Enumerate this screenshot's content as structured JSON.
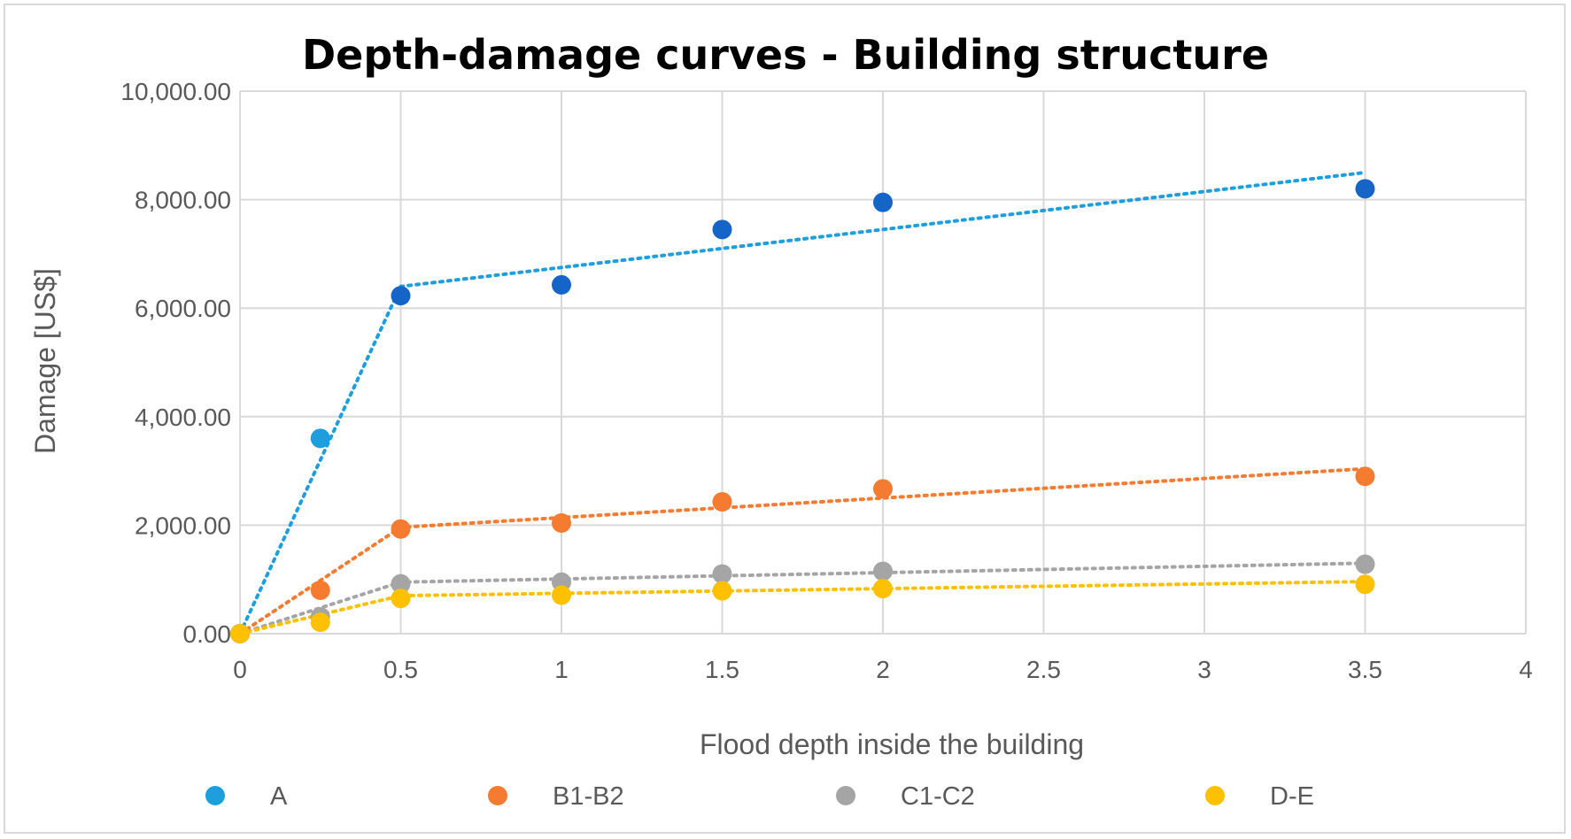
{
  "chart_data": {
    "type": "scatter",
    "title": "Depth-damage curves - Building structure",
    "xlabel": "Flood depth inside the building",
    "ylabel": "Damage [US$]",
    "xlim": [
      0,
      4
    ],
    "ylim": [
      0,
      10000
    ],
    "x_ticks": [
      0,
      0.5,
      1,
      1.5,
      2,
      2.5,
      3,
      3.5,
      4
    ],
    "x_tick_labels": [
      "0",
      "0.5",
      "1",
      "1.5",
      "2",
      "2.5",
      "3",
      "3.5",
      "4"
    ],
    "y_ticks": [
      0,
      2000,
      4000,
      6000,
      8000,
      10000
    ],
    "y_tick_labels": [
      "0.00",
      "2,000.00",
      "4,000.00",
      "6,000.00",
      "8,000.00",
      "10,000.00"
    ],
    "grid": true,
    "legend_position": "bottom",
    "series": [
      {
        "name": "A",
        "color": "#1f9ede",
        "color_dark": "#1565c8",
        "x": [
          0,
          0.25,
          0.5,
          1,
          1.5,
          2,
          3.5
        ],
        "y": [
          0,
          3600,
          6230,
          6430,
          7450,
          7950,
          8200
        ],
        "trend": [
          [
            0,
            0
          ],
          [
            0.5,
            6400
          ],
          [
            3.5,
            8500
          ]
        ]
      },
      {
        "name": "B1-B2",
        "color": "#f47b30",
        "x": [
          0,
          0.25,
          0.5,
          1,
          1.5,
          2,
          3.5
        ],
        "y": [
          0,
          800,
          1930,
          2040,
          2430,
          2670,
          2900
        ],
        "trend": [
          [
            0,
            0
          ],
          [
            0.5,
            1960
          ],
          [
            3.5,
            3040
          ]
        ]
      },
      {
        "name": "C1-C2",
        "color": "#a5a5a5",
        "x": [
          0,
          0.25,
          0.5,
          1,
          1.5,
          2,
          3.5
        ],
        "y": [
          0,
          310,
          920,
          950,
          1100,
          1150,
          1280
        ],
        "trend": [
          [
            0,
            0
          ],
          [
            0.5,
            950
          ],
          [
            3.5,
            1300
          ]
        ]
      },
      {
        "name": "D-E",
        "color": "#ffc000",
        "x": [
          0,
          0.25,
          0.5,
          1,
          1.5,
          2,
          3.5
        ],
        "y": [
          0,
          210,
          650,
          710,
          790,
          830,
          910
        ],
        "trend": [
          [
            0,
            0
          ],
          [
            0.5,
            700
          ],
          [
            3.5,
            960
          ]
        ]
      }
    ]
  }
}
